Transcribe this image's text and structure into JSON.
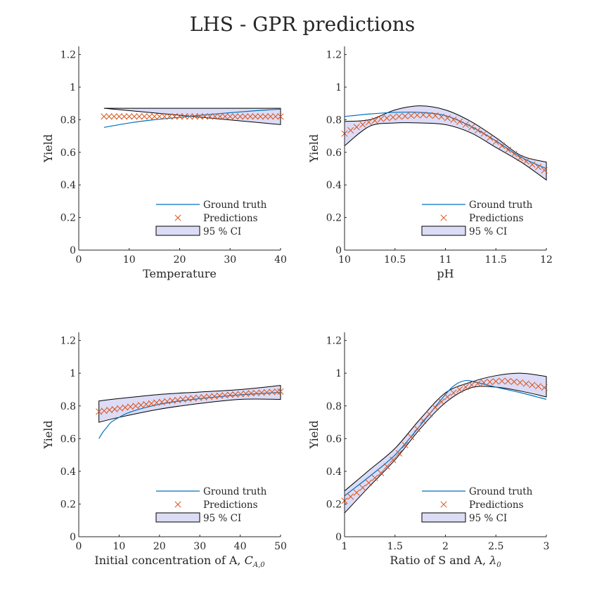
{
  "figure": {
    "title": "LHS - GPR predictions"
  },
  "colors": {
    "ground_truth": "#0072BD",
    "predictions": "#D95319",
    "ci_fill": "#dcdcf7",
    "ci_edge": "#000000"
  },
  "legend_labels": {
    "ground_truth": "Ground truth",
    "predictions": "Predictions",
    "ci": "95 % CI"
  },
  "chart_data": [
    {
      "type": "line",
      "xlabel": "Temperature",
      "ylabel": "Yield",
      "xlim": [
        0,
        40
      ],
      "ylim": [
        0,
        1.25
      ],
      "xticks": [
        0,
        10,
        20,
        30,
        40
      ],
      "xtick_labels": [
        "0",
        "10",
        "20",
        "30",
        "40"
      ],
      "yticks": [
        0,
        0.2,
        0.4,
        0.6,
        0.8,
        1,
        1.2
      ],
      "ytick_labels": [
        "0",
        "0.2",
        "0.4",
        "0.6",
        "0.8",
        "1",
        "1.2"
      ],
      "legend": "bottom-right",
      "grid": false,
      "ground_truth": {
        "x": [
          5,
          10,
          15,
          20,
          25,
          30,
          35,
          40
        ],
        "y": [
          0.753,
          0.78,
          0.8,
          0.815,
          0.83,
          0.843,
          0.855,
          0.865
        ]
      },
      "predictions": {
        "x": [
          5,
          6,
          7,
          8,
          9,
          10,
          11,
          12,
          13,
          14,
          15,
          16,
          17,
          18,
          19,
          20,
          21,
          22,
          23,
          24,
          25,
          26,
          27,
          28,
          29,
          30,
          31,
          32,
          33,
          34,
          35,
          36,
          37,
          38,
          39,
          40
        ],
        "y": [
          0.82,
          0.82,
          0.82,
          0.82,
          0.82,
          0.82,
          0.82,
          0.82,
          0.82,
          0.82,
          0.82,
          0.82,
          0.82,
          0.82,
          0.82,
          0.82,
          0.82,
          0.82,
          0.82,
          0.82,
          0.82,
          0.82,
          0.82,
          0.82,
          0.82,
          0.82,
          0.82,
          0.82,
          0.82,
          0.82,
          0.82,
          0.82,
          0.82,
          0.82,
          0.82,
          0.82
        ]
      },
      "ci": {
        "x": [
          5,
          40
        ],
        "lower": [
          0.77,
          0.77
        ],
        "upper": [
          0.87,
          0.87
        ]
      }
    },
    {
      "type": "line",
      "xlabel": "pH",
      "ylabel": "Yield",
      "xlim": [
        10,
        12
      ],
      "ylim": [
        0,
        1.25
      ],
      "xticks": [
        10,
        10.5,
        11,
        11.5,
        12
      ],
      "xtick_labels": [
        "10",
        "10.5",
        "11",
        "11.5",
        "12"
      ],
      "yticks": [
        0,
        0.2,
        0.4,
        0.6,
        0.8,
        1,
        1.2
      ],
      "ytick_labels": [
        "0",
        "0.2",
        "0.4",
        "0.6",
        "0.8",
        "1",
        "1.2"
      ],
      "legend": "bottom-right",
      "grid": false,
      "ground_truth": {
        "x": [
          10,
          10.25,
          10.5,
          10.75,
          11,
          11.25,
          11.5,
          11.75,
          12
        ],
        "y": [
          0.82,
          0.835,
          0.845,
          0.845,
          0.825,
          0.76,
          0.67,
          0.57,
          0.5
        ]
      },
      "predictions": {
        "x": [
          10,
          10.06,
          10.12,
          10.18,
          10.24,
          10.3,
          10.36,
          10.42,
          10.48,
          10.54,
          10.6,
          10.66,
          10.72,
          10.78,
          10.84,
          10.9,
          10.96,
          11.02,
          11.08,
          11.14,
          11.2,
          11.26,
          11.32,
          11.38,
          11.44,
          11.5,
          11.56,
          11.62,
          11.68,
          11.74,
          11.8,
          11.86,
          11.92,
          11.98
        ],
        "y": [
          0.715,
          0.735,
          0.755,
          0.77,
          0.785,
          0.795,
          0.805,
          0.81,
          0.815,
          0.82,
          0.822,
          0.825,
          0.828,
          0.83,
          0.828,
          0.825,
          0.818,
          0.81,
          0.8,
          0.788,
          0.77,
          0.755,
          0.735,
          0.715,
          0.69,
          0.665,
          0.64,
          0.615,
          0.59,
          0.565,
          0.545,
          0.525,
          0.51,
          0.49
        ]
      },
      "ci": {
        "x": [
          10,
          10.25,
          10.5,
          10.75,
          11,
          11.25,
          11.5,
          11.75,
          12
        ],
        "lower": [
          0.64,
          0.76,
          0.78,
          0.78,
          0.77,
          0.72,
          0.63,
          0.54,
          0.43
        ],
        "upper": [
          0.79,
          0.8,
          0.86,
          0.885,
          0.86,
          0.79,
          0.69,
          0.58,
          0.54
        ]
      }
    },
    {
      "type": "line",
      "xlabel": "Initial concentration of A, ",
      "xlabel_math": {
        "base": "C",
        "sub": "A,0"
      },
      "ylabel": "Yield",
      "xlim": [
        0,
        50
      ],
      "ylim": [
        0,
        1.25
      ],
      "xticks": [
        0,
        10,
        20,
        30,
        40,
        50
      ],
      "xtick_labels": [
        "0",
        "10",
        "20",
        "30",
        "40",
        "50"
      ],
      "yticks": [
        0,
        0.2,
        0.4,
        0.6,
        0.8,
        1,
        1.2
      ],
      "ytick_labels": [
        "0",
        "0.2",
        "0.4",
        "0.6",
        "0.8",
        "1",
        "1.2"
      ],
      "legend": "bottom-right",
      "grid": false,
      "ground_truth": {
        "x": [
          5,
          6,
          7,
          8,
          10,
          12,
          15,
          20,
          25,
          30,
          35,
          40,
          45,
          50
        ],
        "y": [
          0.6,
          0.64,
          0.67,
          0.7,
          0.73,
          0.755,
          0.78,
          0.81,
          0.83,
          0.845,
          0.857,
          0.868,
          0.876,
          0.883
        ]
      },
      "predictions": {
        "x": [
          5,
          6.3,
          7.6,
          8.9,
          10.2,
          11.5,
          12.8,
          14.1,
          15.4,
          16.7,
          18,
          19.3,
          20.6,
          21.9,
          23.2,
          24.5,
          25.8,
          27.1,
          28.4,
          29.7,
          31,
          32.3,
          33.6,
          34.9,
          36.2,
          37.5,
          38.8,
          40.1,
          41.4,
          42.7,
          44,
          45.3,
          46.6,
          47.9,
          49.2,
          50
        ],
        "y": [
          0.765,
          0.77,
          0.775,
          0.78,
          0.785,
          0.79,
          0.795,
          0.8,
          0.805,
          0.81,
          0.815,
          0.82,
          0.824,
          0.828,
          0.832,
          0.836,
          0.84,
          0.844,
          0.847,
          0.85,
          0.853,
          0.856,
          0.859,
          0.862,
          0.865,
          0.868,
          0.87,
          0.872,
          0.875,
          0.877,
          0.879,
          0.881,
          0.883,
          0.885,
          0.887,
          0.888
        ]
      },
      "ci": {
        "x": [
          5,
          10,
          20,
          30,
          40,
          50
        ],
        "lower": [
          0.7,
          0.73,
          0.78,
          0.815,
          0.84,
          0.84
        ],
        "upper": [
          0.83,
          0.845,
          0.87,
          0.885,
          0.9,
          0.925
        ]
      }
    },
    {
      "type": "line",
      "xlabel": "Ratio of S and A, ",
      "xlabel_math": {
        "base": "λ",
        "sub": "0"
      },
      "ylabel": "Yield",
      "xlim": [
        1,
        3
      ],
      "ylim": [
        0,
        1.25
      ],
      "xticks": [
        1,
        1.5,
        2,
        2.5,
        3
      ],
      "xtick_labels": [
        "1",
        "1.5",
        "2",
        "2.5",
        "3"
      ],
      "yticks": [
        0,
        0.2,
        0.4,
        0.6,
        0.8,
        1,
        1.2
      ],
      "ytick_labels": [
        "0",
        "0.2",
        "0.4",
        "0.6",
        "0.8",
        "1",
        "1.2"
      ],
      "legend": "bottom-right",
      "grid": false,
      "ground_truth": {
        "x": [
          1,
          1.25,
          1.5,
          1.75,
          2,
          2.1,
          2.2,
          2.3,
          2.5,
          2.75,
          3
        ],
        "y": [
          0.25,
          0.37,
          0.5,
          0.68,
          0.87,
          0.93,
          0.955,
          0.945,
          0.915,
          0.88,
          0.84
        ]
      },
      "predictions": {
        "x": [
          1,
          1.06,
          1.12,
          1.18,
          1.24,
          1.3,
          1.36,
          1.42,
          1.48,
          1.54,
          1.6,
          1.66,
          1.72,
          1.78,
          1.84,
          1.9,
          1.96,
          2.02,
          2.08,
          2.14,
          2.2,
          2.26,
          2.32,
          2.38,
          2.44,
          2.5,
          2.56,
          2.62,
          2.68,
          2.74,
          2.8,
          2.86,
          2.92,
          2.98
        ],
        "y": [
          0.22,
          0.245,
          0.27,
          0.3,
          0.33,
          0.36,
          0.39,
          0.43,
          0.47,
          0.51,
          0.56,
          0.61,
          0.66,
          0.71,
          0.75,
          0.79,
          0.825,
          0.855,
          0.88,
          0.9,
          0.915,
          0.928,
          0.937,
          0.943,
          0.947,
          0.95,
          0.952,
          0.951,
          0.948,
          0.943,
          0.936,
          0.928,
          0.92,
          0.912
        ]
      },
      "ci": {
        "x": [
          1,
          1.25,
          1.5,
          1.75,
          2,
          2.25,
          2.5,
          2.75,
          3
        ],
        "lower": [
          0.145,
          0.31,
          0.47,
          0.66,
          0.82,
          0.91,
          0.915,
          0.89,
          0.855
        ],
        "upper": [
          0.28,
          0.41,
          0.54,
          0.72,
          0.88,
          0.945,
          0.985,
          1.0,
          0.98
        ]
      }
    }
  ]
}
